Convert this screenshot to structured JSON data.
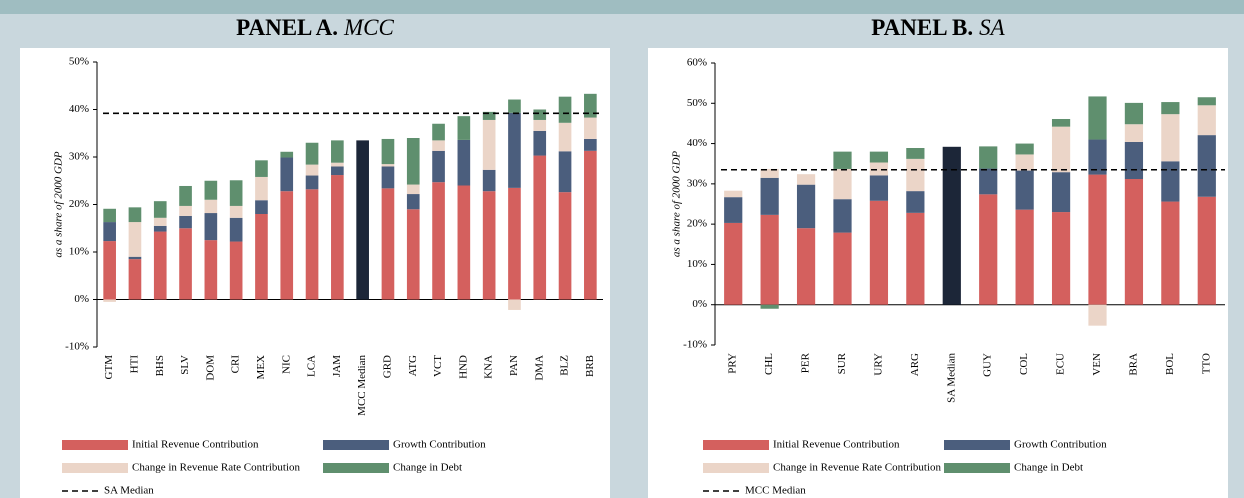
{
  "chart_data": [
    {
      "type": "stacked_bar",
      "title": "PANEL A.",
      "title_emphasis": "MCC",
      "y_label": "as a share of 2000 GDP",
      "categories": [
        "GTM",
        "HTI",
        "BHS",
        "SLV",
        "DOM",
        "CRI",
        "MEX",
        "NIC",
        "LCA",
        "JAM",
        "MCC Median",
        "GRD",
        "ATG",
        "VCT",
        "HND",
        "KNA",
        "PAN",
        "DMA",
        "BLZ",
        "BRB"
      ],
      "ylim": [
        -10,
        50
      ],
      "yticks": [
        {
          "value": -10,
          "label": "-10%"
        },
        {
          "value": 0,
          "label": "0%"
        },
        {
          "value": 10,
          "label": "10%"
        },
        {
          "value": 20,
          "label": "20%"
        },
        {
          "value": 30,
          "label": "30%"
        },
        {
          "value": 40,
          "label": "40%"
        },
        {
          "value": 50,
          "label": "50%"
        }
      ],
      "series": [
        {
          "name": "Initial Revenue Contribution",
          "color": "#d4605e",
          "values": [
            12.3,
            8.5,
            14.3,
            15.0,
            12.5,
            12.2,
            18.0,
            22.8,
            23.2,
            26.2,
            null,
            23.4,
            19.0,
            24.7,
            24.0,
            22.8,
            23.5,
            30.3,
            22.6,
            31.3
          ]
        },
        {
          "name": "Growth Contribution",
          "color": "#4b5e7d",
          "values": [
            4.0,
            0.5,
            1.2,
            2.6,
            5.7,
            5.0,
            2.9,
            7.1,
            2.9,
            1.8,
            null,
            4.6,
            3.2,
            6.6,
            9.6,
            4.5,
            15.8,
            5.2,
            8.6,
            2.5
          ]
        },
        {
          "name": "Change in Revenue Rate Contribution",
          "color": "#ebd5c8",
          "values": [
            -0.5,
            7.3,
            1.7,
            2.1,
            2.8,
            2.5,
            4.9,
            0,
            2.3,
            0.8,
            null,
            0.5,
            2.0,
            2.2,
            0,
            10.5,
            -2.2,
            2.3,
            6.0,
            4.5
          ]
        },
        {
          "name": "Change in Debt",
          "color": "#5f8f6e",
          "values": [
            2.8,
            3.1,
            3.5,
            4.2,
            4.0,
            5.4,
            3.5,
            1.2,
            4.6,
            4.7,
            null,
            5.3,
            9.8,
            3.5,
            5.0,
            1.7,
            2.8,
            2.2,
            5.5,
            5.0
          ]
        },
        {
          "color": "#1c2638",
          "values": [
            null,
            null,
            null,
            null,
            null,
            null,
            null,
            null,
            null,
            null,
            33.5,
            null,
            null,
            null,
            null,
            null,
            null,
            null,
            null,
            null
          ]
        }
      ],
      "reference_line": {
        "name": "SA Median",
        "value": 39.2,
        "style": "dashed"
      }
    },
    {
      "type": "stacked_bar",
      "title": "PANEL B.",
      "title_emphasis": "SA",
      "y_label": "as a share of 2000 GDP",
      "categories": [
        "PRY",
        "CHL",
        "PER",
        "SUR",
        "URY",
        "ARG",
        "SA Median",
        "GUY",
        "COL",
        "ECU",
        "VEN",
        "BRA",
        "BOL",
        "TTO"
      ],
      "ylim": [
        -10,
        60
      ],
      "yticks": [
        {
          "value": -10,
          "label": "-10%"
        },
        {
          "value": 0,
          "label": "0%"
        },
        {
          "value": 10,
          "label": "10%"
        },
        {
          "value": 20,
          "label": "20%"
        },
        {
          "value": 30,
          "label": "30%"
        },
        {
          "value": 40,
          "label": "40%"
        },
        {
          "value": 50,
          "label": "50%"
        },
        {
          "value": 60,
          "label": "60%"
        }
      ],
      "series": [
        {
          "name": "Initial Revenue Contribution",
          "color": "#d4605e",
          "values": [
            20.3,
            22.3,
            19.0,
            17.9,
            25.8,
            22.8,
            null,
            27.4,
            23.6,
            23.0,
            32.3,
            31.2,
            25.6,
            26.8
          ]
        },
        {
          "name": "Growth Contribution",
          "color": "#4b5e7d",
          "values": [
            6.4,
            9.2,
            10.8,
            8.3,
            6.3,
            5.4,
            null,
            6.4,
            9.7,
            9.9,
            8.7,
            9.2,
            10.0,
            15.3
          ]
        },
        {
          "name": "Change in Revenue Rate Contribution",
          "color": "#ebd5c8",
          "values": [
            1.6,
            2.2,
            2.6,
            7.5,
            3.2,
            8.0,
            null,
            0,
            4.0,
            11.3,
            -5.2,
            4.4,
            11.7,
            7.4
          ]
        },
        {
          "name": "Change in Debt",
          "color": "#5f8f6e",
          "values": [
            0,
            -1.0,
            0,
            4.3,
            2.7,
            2.7,
            null,
            5.5,
            2.7,
            1.9,
            10.7,
            5.3,
            3.0,
            2.0
          ]
        },
        {
          "color": "#1c2638",
          "values": [
            null,
            null,
            null,
            null,
            null,
            null,
            39.2,
            null,
            null,
            null,
            null,
            null,
            null,
            null
          ]
        }
      ],
      "reference_line": {
        "name": "MCC Median",
        "value": 33.5,
        "style": "dashed"
      }
    }
  ]
}
